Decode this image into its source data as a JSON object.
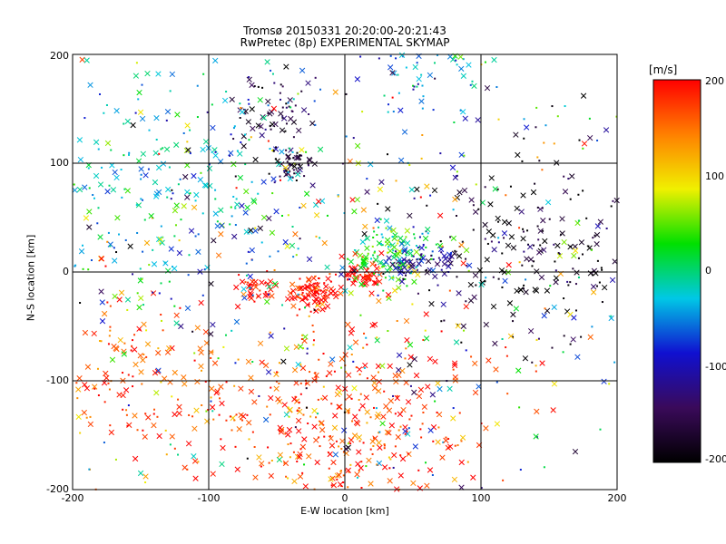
{
  "chart_data": {
    "type": "scatter",
    "title": "Tromsø 20150331 20:20:00-20:21:43",
    "subtitle": "RwPretec (8p) EXPERIMENTAL SKYMAP",
    "xlabel": "E-W location [km]",
    "ylabel": "N-S location [km]",
    "xlim": [
      -200,
      200
    ],
    "ylim": [
      -200,
      200
    ],
    "xticks": [
      "-200",
      "-100",
      "0",
      "100",
      "200"
    ],
    "yticks": [
      "-200",
      "-100",
      "0",
      "100",
      "200"
    ],
    "grid": true,
    "markers": [
      "x",
      "."
    ],
    "colorbar": {
      "label": "[m/s]",
      "range": [
        -200,
        200
      ],
      "ticks": [
        "-200",
        "-100",
        "0",
        "100",
        "200"
      ],
      "colormap": [
        "#000000",
        "#3a0a5a",
        "#1010d0",
        "#00c8e6",
        "#00e000",
        "#f0f000",
        "#ff8000",
        "#ff0000"
      ]
    },
    "clusters": [
      {
        "x": -25,
        "y": -20,
        "spread": 8,
        "count": 90,
        "value": 200
      },
      {
        "x": 15,
        "y": -5,
        "spread": 7,
        "count": 60,
        "value": 200
      },
      {
        "x": -65,
        "y": -15,
        "spread": 7,
        "count": 40,
        "value": 200
      },
      {
        "x": 35,
        "y": 15,
        "spread": 14,
        "count": 120,
        "value": 20
      },
      {
        "x": 45,
        "y": 10,
        "spread": 8,
        "count": 40,
        "value": -110
      },
      {
        "x": -40,
        "y": 100,
        "spread": 8,
        "count": 50,
        "value": -180
      },
      {
        "x": -50,
        "y": 145,
        "spread": 15,
        "count": 60,
        "value": -170
      },
      {
        "x": 70,
        "y": 10,
        "spread": 8,
        "count": 30,
        "value": -110
      },
      {
        "x": 0,
        "y": -140,
        "spread": 55,
        "count": 450,
        "value": 175
      },
      {
        "x": -150,
        "y": -100,
        "spread": 40,
        "count": 150,
        "value": 175
      },
      {
        "x": 140,
        "y": 20,
        "spread": 45,
        "count": 220,
        "value": -185
      },
      {
        "x": -120,
        "y": 80,
        "spread": 55,
        "count": 250,
        "value": -20
      },
      {
        "x": 60,
        "y": 185,
        "spread": 20,
        "count": 60,
        "value": -40
      },
      {
        "x": 0,
        "y": 0,
        "spread": 140,
        "count": 700,
        "value": 0
      }
    ]
  }
}
